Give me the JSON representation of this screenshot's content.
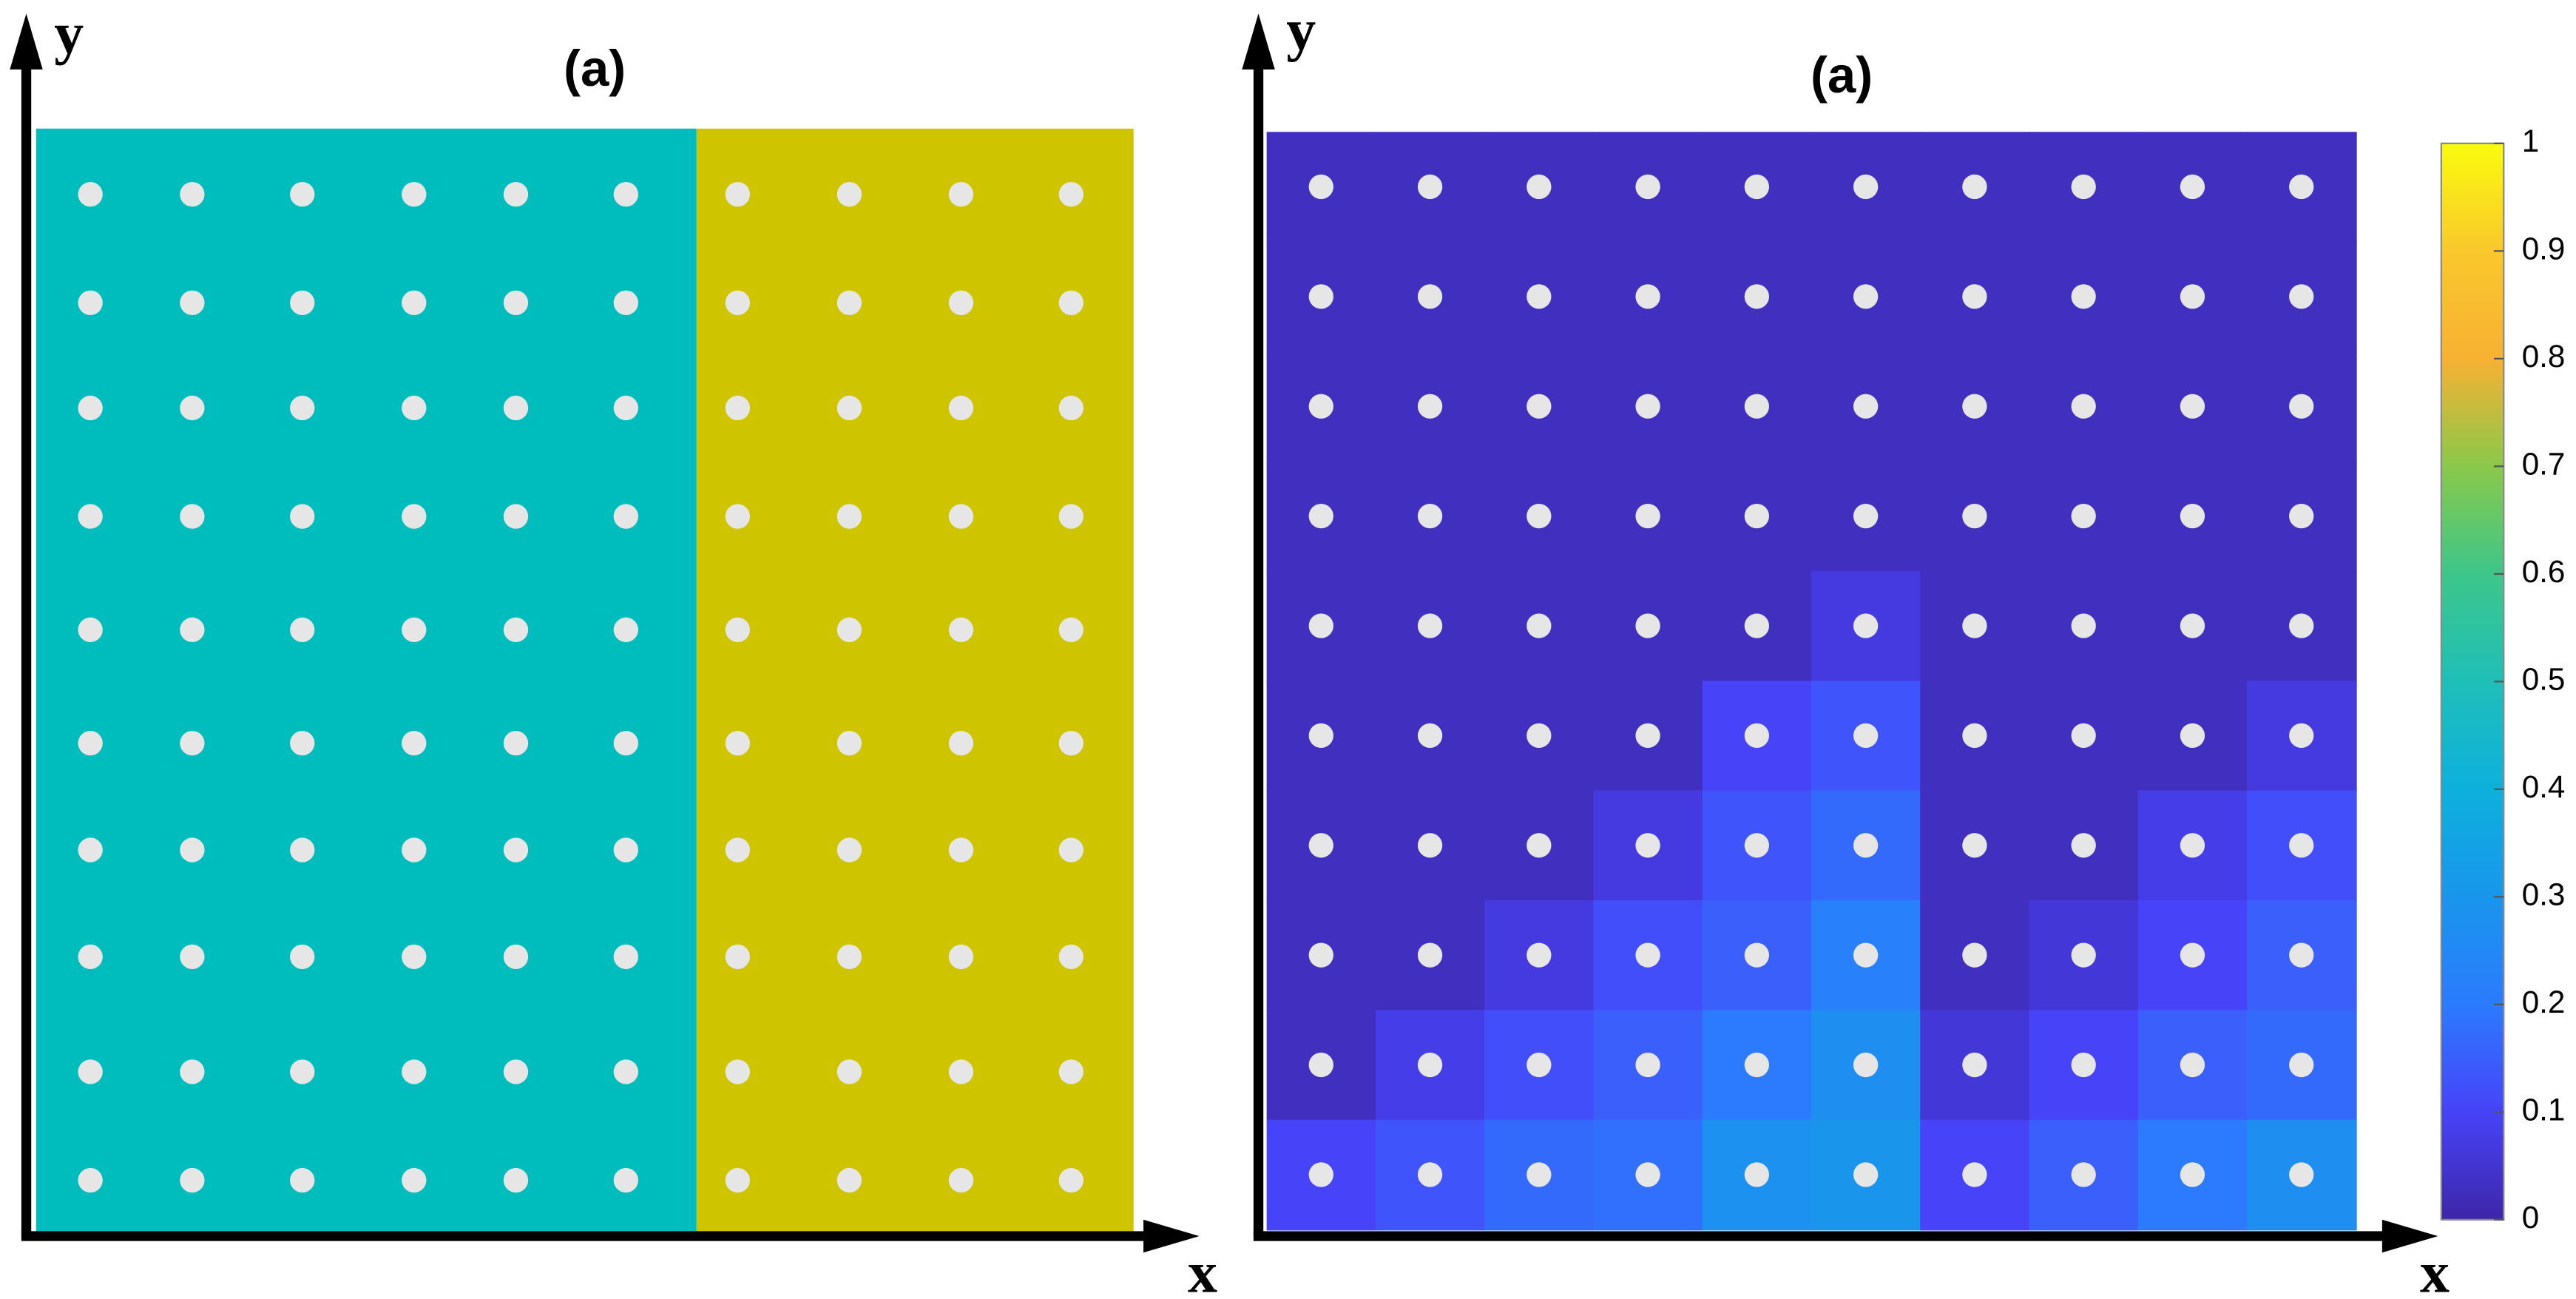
{
  "chart_data": [
    {
      "type": "regions",
      "title": "(a)",
      "x_label": "x",
      "y_label": "y",
      "colors": [
        "#00bdbd",
        "#cfc400"
      ]
    },
    {
      "type": "heatmap",
      "title": "(a)",
      "x_label": "x",
      "y_label": "y",
      "values": [
        [
          0.03,
          0.03,
          0.03,
          0.03,
          0.03,
          0.03,
          0.03,
          0.03,
          0.03,
          0.03
        ],
        [
          0.03,
          0.03,
          0.03,
          0.03,
          0.03,
          0.03,
          0.03,
          0.03,
          0.03,
          0.03
        ],
        [
          0.03,
          0.03,
          0.03,
          0.03,
          0.03,
          0.03,
          0.03,
          0.03,
          0.03,
          0.03
        ],
        [
          0.03,
          0.03,
          0.03,
          0.03,
          0.03,
          0.03,
          0.03,
          0.03,
          0.03,
          0.03
        ],
        [
          0.03,
          0.03,
          0.03,
          0.03,
          0.03,
          0.07,
          0.03,
          0.03,
          0.03,
          0.03
        ],
        [
          0.03,
          0.03,
          0.03,
          0.03,
          0.1,
          0.13,
          0.03,
          0.03,
          0.03,
          0.07
        ],
        [
          0.03,
          0.03,
          0.03,
          0.07,
          0.13,
          0.17,
          0.03,
          0.03,
          0.08,
          0.12
        ],
        [
          0.03,
          0.03,
          0.07,
          0.12,
          0.15,
          0.22,
          0.03,
          0.06,
          0.1,
          0.15
        ],
        [
          0.03,
          0.08,
          0.12,
          0.15,
          0.2,
          0.27,
          0.06,
          0.1,
          0.15,
          0.17
        ],
        [
          0.1,
          0.13,
          0.17,
          0.18,
          0.28,
          0.3,
          0.1,
          0.15,
          0.2,
          0.27
        ]
      ],
      "colormap": [
        "#3e26a8",
        "#4743f8",
        "#2c7bfe",
        "#1996ec",
        "#0db0dc",
        "#1fbfb8",
        "#3dc68a",
        "#8ac84a",
        "#f7b133",
        "#f9c82c",
        "#f9fb0e"
      ],
      "clim": [
        0,
        1
      ],
      "cticks": [
        0,
        0.1,
        0.2,
        0.3,
        0.4,
        0.5,
        0.6,
        0.7,
        0.8,
        0.9,
        1
      ]
    }
  ]
}
